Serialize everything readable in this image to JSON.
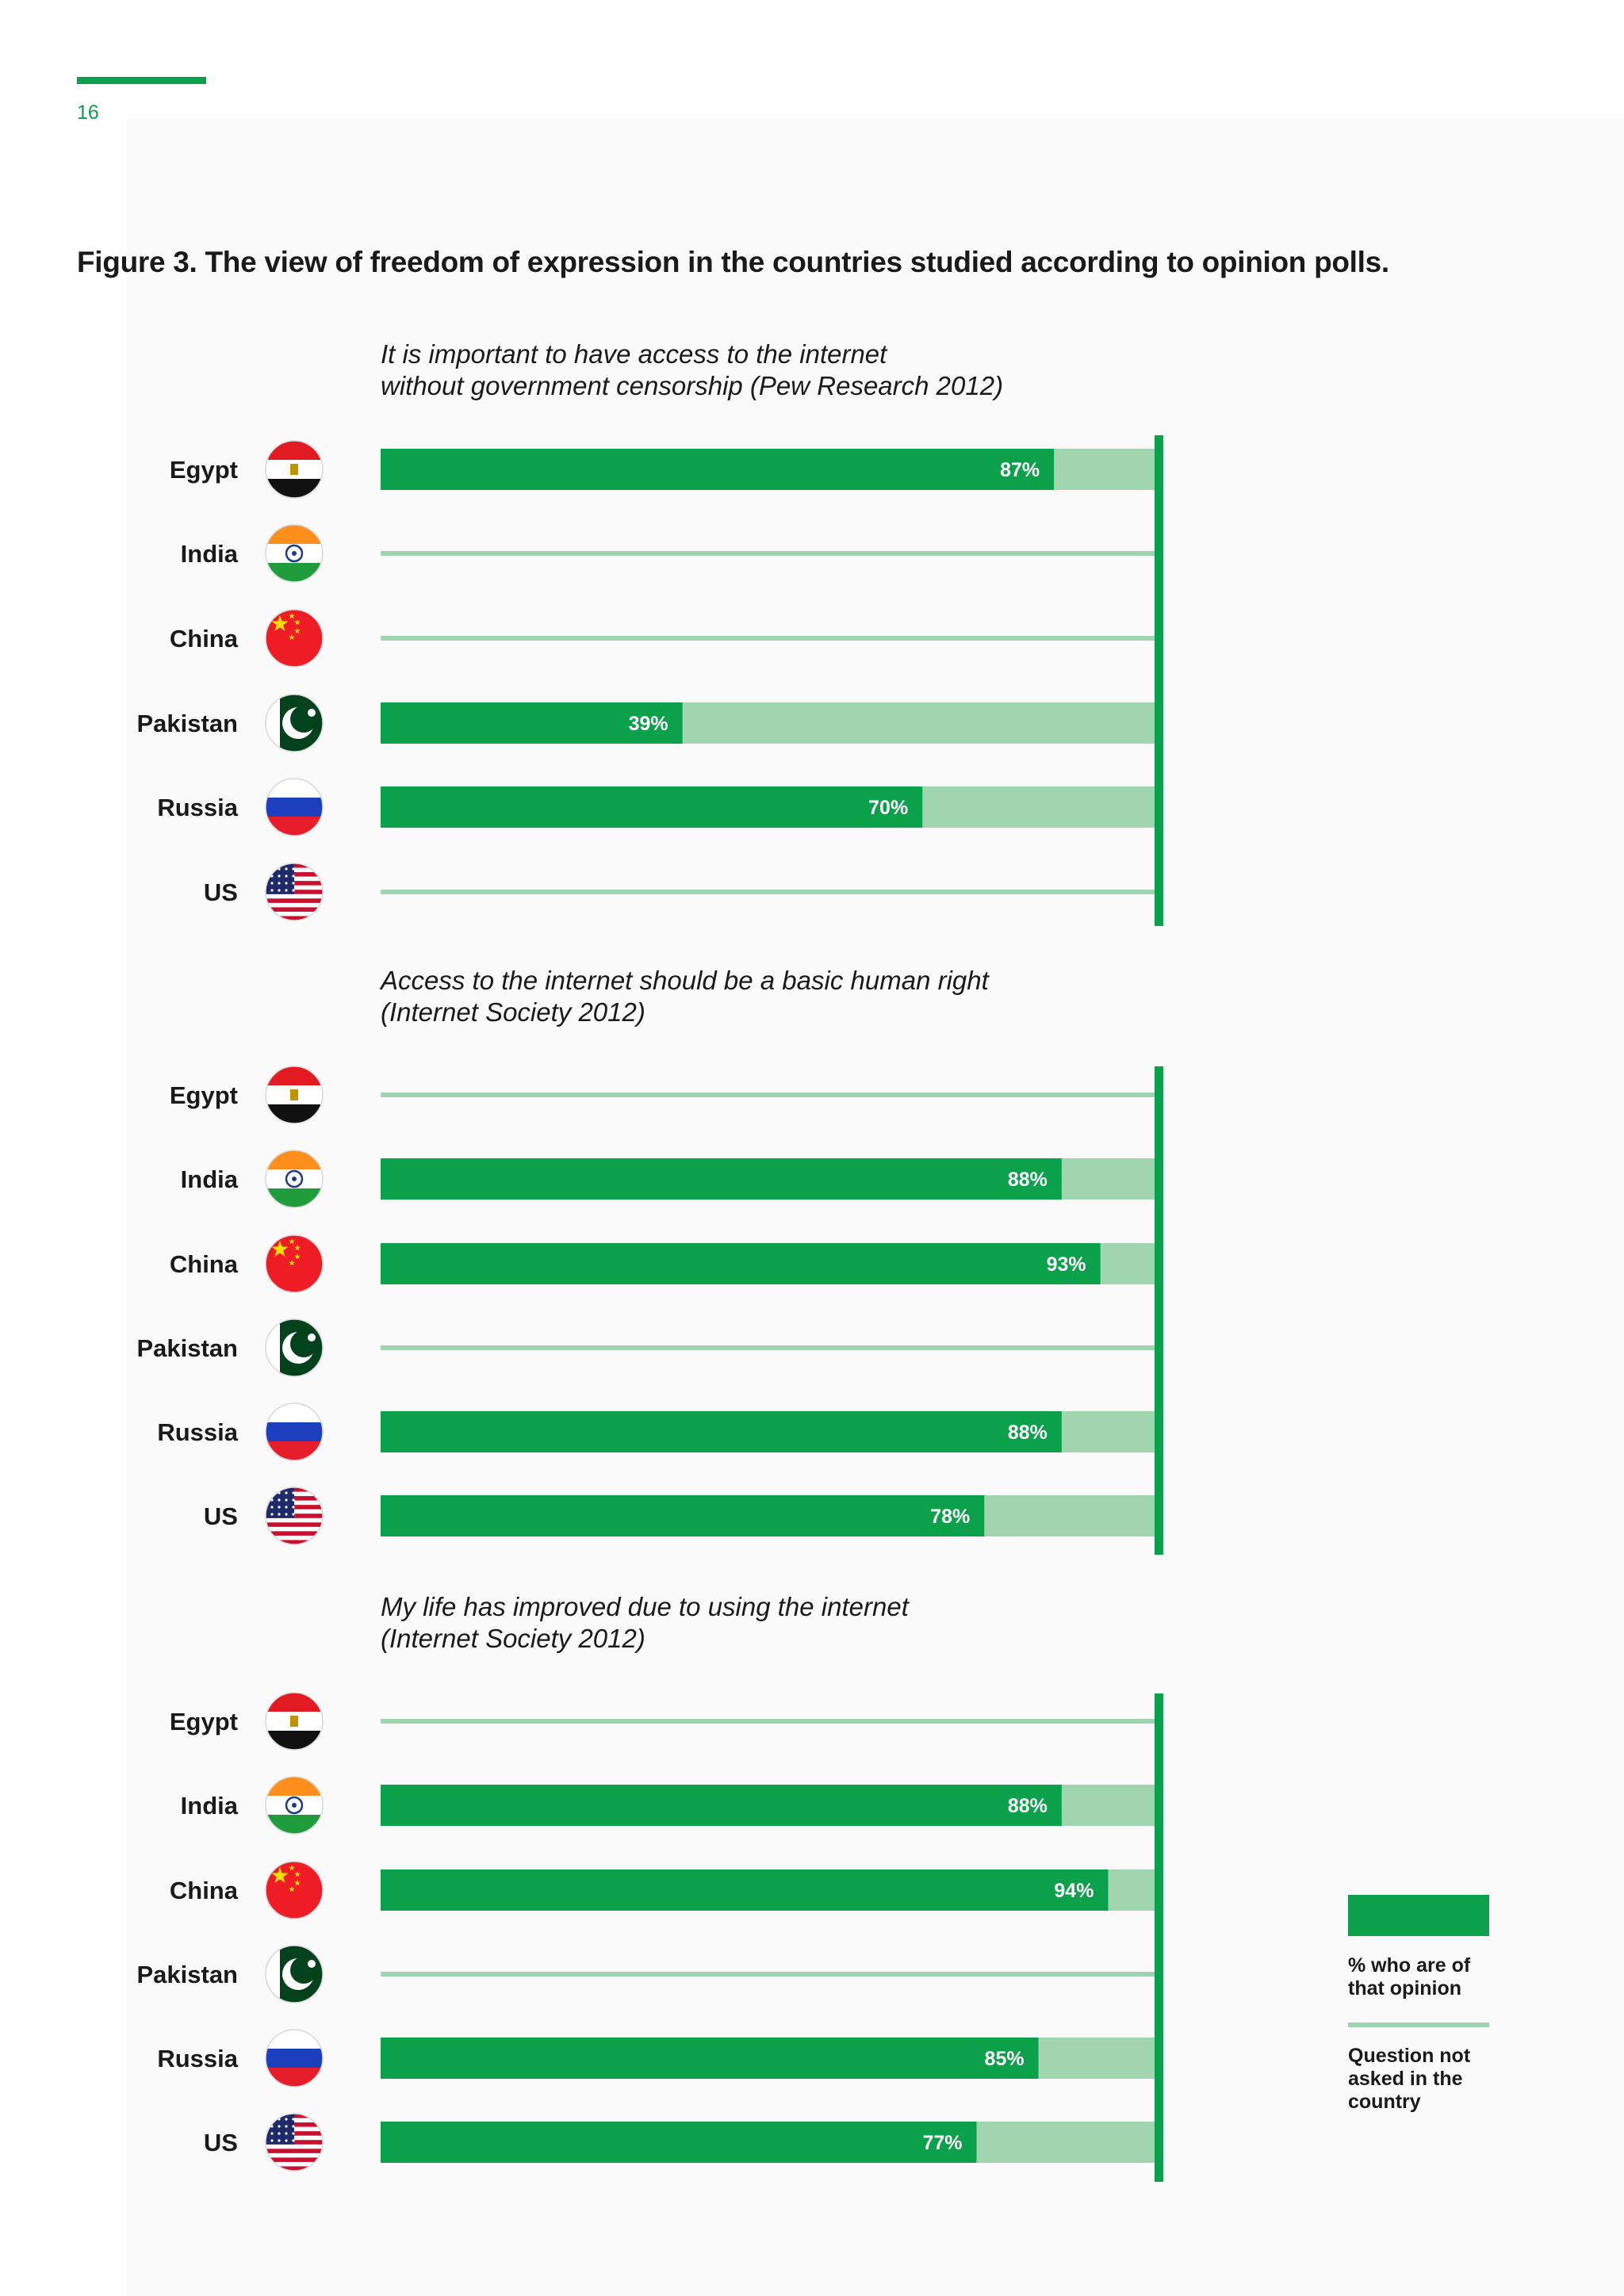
{
  "page": {
    "number": "16"
  },
  "figure": {
    "title": "Figure 3. The view of freedom of expression in the countries studied according to opinion polls."
  },
  "colors": {
    "accent": "#0aa14a",
    "remainder": "#a0d5b0",
    "not_asked": "#9fd4ae"
  },
  "countries": [
    {
      "name": "Egypt",
      "flag": "egypt-flag"
    },
    {
      "name": "India",
      "flag": "india-flag"
    },
    {
      "name": "China",
      "flag": "china-flag"
    },
    {
      "name": "Pakistan",
      "flag": "pakistan-flag"
    },
    {
      "name": "Russia",
      "flag": "russia-flag"
    },
    {
      "name": "US",
      "flag": "us-flag"
    }
  ],
  "chart_data": [
    {
      "type": "bar",
      "orientation": "horizontal",
      "subtitle_lines": [
        "It is important to have access to the internet",
        "without government censorship (Pew Research 2012)"
      ],
      "categories": [
        "Egypt",
        "India",
        "China",
        "Pakistan",
        "Russia",
        "US"
      ],
      "values": [
        87,
        null,
        null,
        39,
        70,
        null
      ],
      "labels": [
        "87%",
        "",
        "",
        "39%",
        "70%",
        ""
      ],
      "xlim": [
        0,
        100
      ]
    },
    {
      "type": "bar",
      "orientation": "horizontal",
      "subtitle_lines": [
        "Access to the internet should be a basic human right",
        "(Internet Society 2012)"
      ],
      "categories": [
        "Egypt",
        "India",
        "China",
        "Pakistan",
        "Russia",
        "US"
      ],
      "values": [
        null,
        88,
        93,
        null,
        88,
        78
      ],
      "labels": [
        "",
        "88%",
        "93%",
        "",
        "88%",
        "78%"
      ],
      "xlim": [
        0,
        100
      ]
    },
    {
      "type": "bar",
      "orientation": "horizontal",
      "subtitle_lines": [
        "My life has improved due to using the internet",
        "(Internet Society 2012)"
      ],
      "categories": [
        "Egypt",
        "India",
        "China",
        "Pakistan",
        "Russia",
        "US"
      ],
      "values": [
        null,
        88,
        94,
        null,
        85,
        77
      ],
      "labels": [
        "",
        "88%",
        "94%",
        "",
        "85%",
        "77%"
      ],
      "xlim": [
        0,
        100
      ]
    }
  ],
  "legend": {
    "opinion_lines": [
      "% who are of",
      "that opinion"
    ],
    "not_asked_lines": [
      "Question not",
      "asked in the",
      "country"
    ]
  }
}
